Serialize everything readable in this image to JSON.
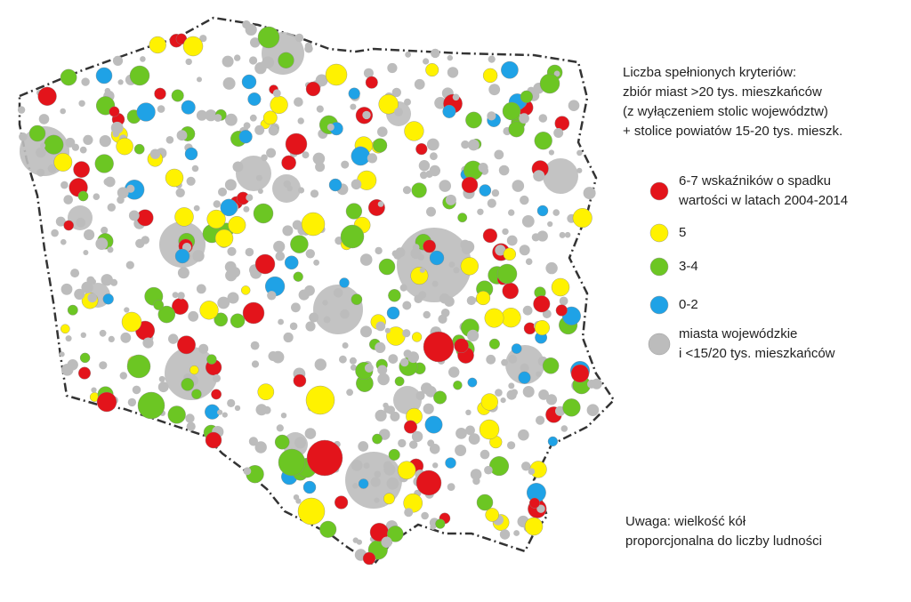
{
  "title": {
    "lines": [
      "Liczba spełnionych kryteriów:",
      "zbiór miast >20 tys. mieszkańców",
      "(z wyłączeniem stolic województw)",
      "+ stolice powiatów 15-20 tys. mieszk."
    ]
  },
  "legend": {
    "items": [
      {
        "color": "#e3141b",
        "lines": [
          "6-7 wskaźników o spadku",
          "wartości w latach 2004-2014"
        ]
      },
      {
        "color": "#fff200",
        "lines": [
          "5"
        ]
      },
      {
        "color": "#6cc623",
        "lines": [
          "3-4"
        ]
      },
      {
        "color": "#1fa2e6",
        "lines": [
          "0-2"
        ]
      },
      {
        "color": "#bcbcbc",
        "lines": [
          "miasta wojewódzkie",
          "i <15/20 tys. mieszkańców"
        ]
      }
    ]
  },
  "note": {
    "lines": [
      "Uwaga: wielkość kół",
      "proporcjonalna do liczby ludności"
    ]
  }
}
